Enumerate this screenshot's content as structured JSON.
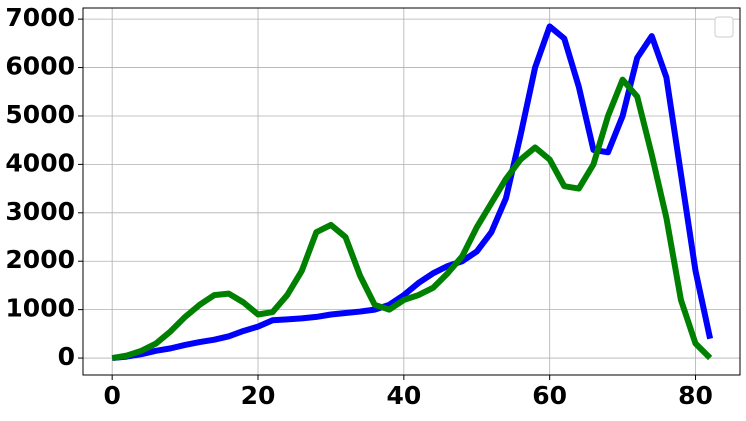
{
  "chart_data": {
    "type": "line",
    "x": [
      0,
      2,
      4,
      6,
      8,
      10,
      12,
      14,
      16,
      18,
      20,
      22,
      24,
      26,
      28,
      30,
      32,
      34,
      36,
      38,
      40,
      42,
      44,
      46,
      48,
      50,
      52,
      54,
      56,
      58,
      60,
      62,
      64,
      66,
      68,
      70,
      72,
      74,
      76,
      78,
      80,
      82
    ],
    "series": [
      {
        "color": "#0000ff",
        "values": [
          0,
          30,
          80,
          150,
          200,
          270,
          330,
          380,
          450,
          560,
          650,
          780,
          800,
          820,
          850,
          900,
          930,
          960,
          1000,
          1100,
          1300,
          1550,
          1750,
          1900,
          2000,
          2200,
          2600,
          3300,
          4600,
          6000,
          6850,
          6600,
          5600,
          4300,
          4250,
          5000,
          6200,
          6650,
          5800,
          3800,
          1800,
          400
        ]
      },
      {
        "color": "#008000",
        "values": [
          0,
          50,
          150,
          300,
          550,
          850,
          1100,
          1300,
          1330,
          1150,
          900,
          950,
          1300,
          1800,
          2600,
          2750,
          2500,
          1700,
          1100,
          1000,
          1200,
          1300,
          1450,
          1750,
          2100,
          2700,
          3200,
          3700,
          4100,
          4350,
          4100,
          3550,
          3500,
          4000,
          5000,
          5750,
          5400,
          4200,
          2900,
          1200,
          300,
          0
        ]
      }
    ],
    "xlim": [
      -4,
      86.1
    ],
    "xticks": [
      0,
      20,
      40,
      60,
      80
    ],
    "ylim": [
      -350,
      7230
    ],
    "yticks": [
      0,
      1000,
      2000,
      3000,
      4000,
      5000,
      6000,
      7000
    ],
    "grid": true
  }
}
